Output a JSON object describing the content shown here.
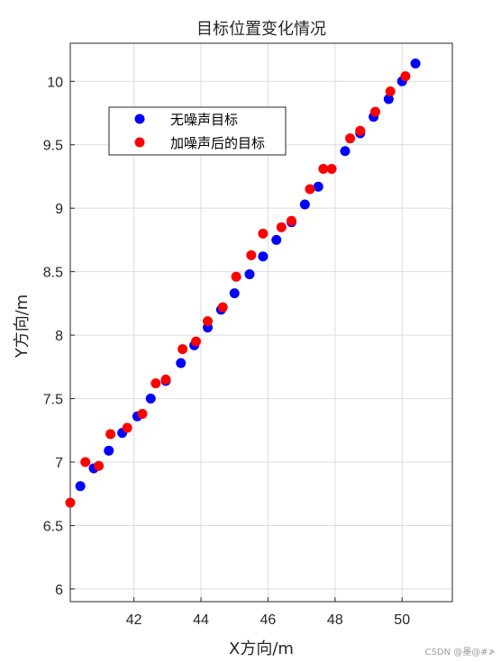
{
  "chart_data": {
    "type": "scatter",
    "title": "目标位置变化情况",
    "xlabel": "X方向/m",
    "ylabel": "Y方向/m",
    "xlim": [
      40.1,
      51.5
    ],
    "ylim": [
      5.9,
      10.3
    ],
    "xticks": [
      42,
      44,
      46,
      48,
      50
    ],
    "yticks": [
      6,
      6.5,
      7,
      7.5,
      8,
      8.5,
      9,
      9.5,
      10
    ],
    "ytick_labels": [
      "6",
      "6.5",
      "7",
      "7.5",
      "8",
      "8.5",
      "9",
      "9.5",
      "10"
    ],
    "grid": true,
    "legend_position": "top-left",
    "series": [
      {
        "name": "无噪声目标",
        "color": "#0000ff",
        "x": [
          40.4,
          40.8,
          41.25,
          41.65,
          42.1,
          42.5,
          42.95,
          43.4,
          43.8,
          44.2,
          44.6,
          45.0,
          45.45,
          45.85,
          46.25,
          46.7,
          47.1,
          47.5,
          48.3,
          48.75,
          49.15,
          49.6,
          50.0,
          50.4
        ],
        "y": [
          6.81,
          6.95,
          7.09,
          7.23,
          7.36,
          7.5,
          7.64,
          7.78,
          7.92,
          8.06,
          8.2,
          8.33,
          8.48,
          8.62,
          8.75,
          8.89,
          9.03,
          9.17,
          9.45,
          9.59,
          9.72,
          9.86,
          10.0,
          10.14
        ]
      },
      {
        "name": "加噪声后的目标",
        "color": "#ff0000",
        "x": [
          40.1,
          40.55,
          40.95,
          41.3,
          41.8,
          42.25,
          42.65,
          42.95,
          43.45,
          43.85,
          44.2,
          44.65,
          45.05,
          45.5,
          45.85,
          46.4,
          46.7,
          47.25,
          47.65,
          47.9,
          48.45,
          48.75,
          49.2,
          49.65,
          50.1
        ],
        "y": [
          6.68,
          7.0,
          6.97,
          7.22,
          7.27,
          7.38,
          7.62,
          7.65,
          7.89,
          7.95,
          8.11,
          8.22,
          8.46,
          8.63,
          8.8,
          8.85,
          8.9,
          9.15,
          9.31,
          9.31,
          9.55,
          9.61,
          9.76,
          9.92,
          10.04
        ]
      }
    ]
  },
  "footer": {
    "watermark": "CSDN @墨@#≯"
  }
}
